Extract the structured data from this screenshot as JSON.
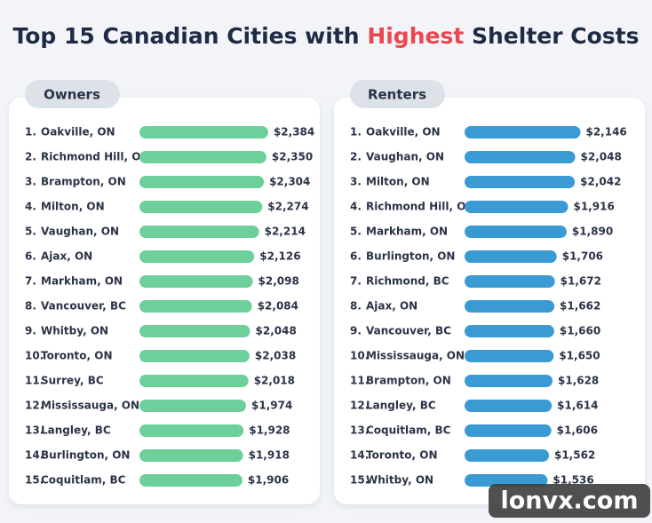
{
  "header": {
    "title_parts": [
      "Top 15 Canadian Cities with ",
      "Highest",
      " Shelter Costs"
    ]
  },
  "watermark": "lonvx.com",
  "chart_data": [
    {
      "type": "bar",
      "orientation": "horizontal",
      "title": "Owners",
      "color": "#6dcf9a",
      "ranks": [
        "1.",
        "2.",
        "3.",
        "4.",
        "5.",
        "6.",
        "7.",
        "8.",
        "9.",
        "10.",
        "11.",
        "12.",
        "13.",
        "14.",
        "15."
      ],
      "categories": [
        "Oakville, ON",
        "Richmond Hill, ON",
        "Brampton, ON",
        "Milton, ON",
        "Vaughan, ON",
        "Ajax, ON",
        "Markham, ON",
        "Vancouver, BC",
        "Whitby, ON",
        "Toronto, ON",
        "Surrey, BC",
        "Mississauga, ON",
        "Langley, BC",
        "Burlington, ON",
        "Coquitlam, BC"
      ],
      "values": [
        2384,
        2350,
        2304,
        2274,
        2214,
        2126,
        2098,
        2084,
        2048,
        2038,
        2018,
        1974,
        1928,
        1918,
        1906
      ],
      "value_labels": [
        "$2,384",
        "$2,350",
        "$2,304",
        "$2,274",
        "$2,214",
        "$2,126",
        "$2,098",
        "$2,084",
        "$2,048",
        "$2,038",
        "$2,018",
        "$1,974",
        "$1,928",
        "$1,918",
        "$1,906"
      ]
    },
    {
      "type": "bar",
      "orientation": "horizontal",
      "title": "Renters",
      "color": "#3a9ad4",
      "ranks": [
        "1.",
        "2.",
        "3.",
        "4.",
        "5.",
        "6.",
        "7.",
        "8.",
        "9.",
        "10.",
        "11.",
        "12.",
        "13.",
        "14.",
        "15."
      ],
      "categories": [
        "Oakville, ON",
        "Vaughan, ON",
        "Milton, ON",
        "Richmond Hill, ON",
        "Markham, ON",
        "Burlington, ON",
        "Richmond, BC",
        "Ajax, ON",
        "Vancouver, BC",
        "Mississauga, ON",
        "Brampton, ON",
        "Langley, BC",
        "Coquitlam, BC",
        "Toronto, ON",
        "Whitby, ON"
      ],
      "values": [
        2146,
        2048,
        2042,
        1916,
        1890,
        1706,
        1672,
        1662,
        1660,
        1650,
        1628,
        1614,
        1606,
        1562,
        1536
      ],
      "value_labels": [
        "$2,146",
        "$2,048",
        "$2,042",
        "$1,916",
        "$1,890",
        "$1,706",
        "$1,672",
        "$1,662",
        "$1,660",
        "$1,650",
        "$1,628",
        "$1,614",
        "$1,606",
        "$1,562",
        "$1,536"
      ]
    }
  ]
}
